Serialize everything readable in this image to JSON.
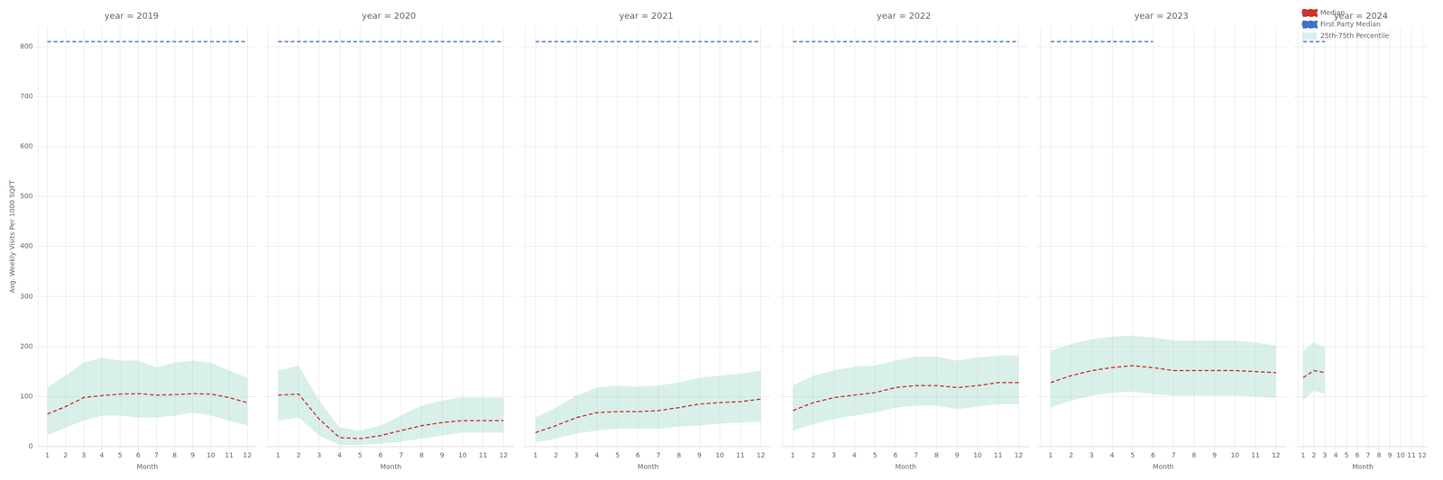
{
  "chart_data": [
    {
      "type": "line",
      "title": "year = 2019",
      "xlabel": "Month",
      "ylabel": "Avg. Weekly Visits Per 1000 SQFT",
      "x": [
        1,
        2,
        3,
        4,
        5,
        6,
        7,
        8,
        9,
        10,
        11,
        12
      ],
      "xlim": [
        0.5,
        12.5
      ],
      "xticks": [
        1,
        2,
        3,
        4,
        5,
        6,
        7,
        8,
        9,
        10,
        11,
        12
      ],
      "ylim": [
        0,
        840
      ],
      "yticks": [
        0,
        100,
        200,
        300,
        400,
        500,
        600,
        700,
        800
      ],
      "grid": true,
      "series": [
        {
          "name": "25th-75th Percentile",
          "type": "area",
          "color": "#90d4c0",
          "low": [
            22,
            38,
            52,
            62,
            62,
            58,
            58,
            62,
            68,
            62,
            52,
            42
          ],
          "high": [
            118,
            142,
            168,
            178,
            172,
            172,
            158,
            168,
            172,
            168,
            152,
            138
          ]
        },
        {
          "name": "Median",
          "type": "line",
          "color": "#cc3333",
          "line_style": "dashed",
          "values": [
            65,
            80,
            98,
            102,
            105,
            106,
            103,
            104,
            106,
            105,
            98,
            88
          ]
        },
        {
          "name": "First Party Median",
          "type": "line",
          "color": "#4472c4",
          "line_style": "dashed",
          "values": [
            810,
            810,
            810,
            810,
            810,
            810,
            810,
            810,
            810,
            810,
            810,
            810
          ]
        }
      ]
    },
    {
      "type": "line",
      "title": "year = 2020",
      "xlabel": "Month",
      "x": [
        1,
        2,
        3,
        4,
        5,
        6,
        7,
        8,
        9,
        10,
        11,
        12
      ],
      "xlim": [
        0.5,
        12.5
      ],
      "xticks": [
        1,
        2,
        3,
        4,
        5,
        6,
        7,
        8,
        9,
        10,
        11,
        12
      ],
      "ylim": [
        0,
        840
      ],
      "yticks": [
        0,
        100,
        200,
        300,
        400,
        500,
        600,
        700,
        800
      ],
      "grid": true,
      "tick_labels": "x",
      "series": [
        {
          "name": "25th-75th Percentile",
          "type": "area",
          "color": "#90d4c0",
          "low": [
            52,
            58,
            22,
            3,
            3,
            6,
            10,
            16,
            22,
            28,
            28,
            28
          ],
          "high": [
            152,
            162,
            92,
            38,
            32,
            42,
            62,
            82,
            92,
            98,
            98,
            98
          ]
        },
        {
          "name": "Median",
          "type": "line",
          "color": "#cc3333",
          "line_style": "dashed",
          "values": [
            103,
            105,
            55,
            18,
            16,
            22,
            32,
            42,
            48,
            52,
            52,
            52
          ]
        },
        {
          "name": "First Party Median",
          "type": "line",
          "color": "#4472c4",
          "line_style": "dashed",
          "values": [
            810,
            810,
            810,
            810,
            810,
            810,
            810,
            810,
            810,
            810,
            810,
            810
          ]
        }
      ]
    },
    {
      "type": "line",
      "title": "year = 2021",
      "xlabel": "Month",
      "x": [
        1,
        2,
        3,
        4,
        5,
        6,
        7,
        8,
        9,
        10,
        11,
        12
      ],
      "xlim": [
        0.5,
        12.5
      ],
      "xticks": [
        1,
        2,
        3,
        4,
        5,
        6,
        7,
        8,
        9,
        10,
        11,
        12
      ],
      "ylim": [
        0,
        840
      ],
      "yticks": [
        0,
        100,
        200,
        300,
        400,
        500,
        600,
        700,
        800
      ],
      "grid": true,
      "tick_labels": "x",
      "series": [
        {
          "name": "25th-75th Percentile",
          "type": "area",
          "color": "#90d4c0",
          "low": [
            8,
            16,
            26,
            32,
            36,
            36,
            36,
            40,
            42,
            46,
            48,
            50
          ],
          "high": [
            58,
            78,
            102,
            118,
            122,
            120,
            122,
            128,
            138,
            142,
            146,
            152
          ]
        },
        {
          "name": "Median",
          "type": "line",
          "color": "#cc3333",
          "line_style": "dashed",
          "values": [
            28,
            42,
            58,
            68,
            70,
            70,
            72,
            78,
            85,
            88,
            90,
            95
          ]
        },
        {
          "name": "First Party Median",
          "type": "line",
          "color": "#4472c4",
          "line_style": "dashed",
          "values": [
            810,
            810,
            810,
            810,
            810,
            810,
            810,
            810,
            810,
            810,
            810,
            810
          ]
        }
      ]
    },
    {
      "type": "line",
      "title": "year = 2022",
      "xlabel": "Month",
      "x": [
        1,
        2,
        3,
        4,
        5,
        6,
        7,
        8,
        9,
        10,
        11,
        12
      ],
      "xlim": [
        0.5,
        12.5
      ],
      "xticks": [
        1,
        2,
        3,
        4,
        5,
        6,
        7,
        8,
        9,
        10,
        11,
        12
      ],
      "ylim": [
        0,
        840
      ],
      "yticks": [
        0,
        100,
        200,
        300,
        400,
        500,
        600,
        700,
        800
      ],
      "grid": true,
      "tick_labels": "x",
      "series": [
        {
          "name": "25th-75th Percentile",
          "type": "area",
          "color": "#90d4c0",
          "low": [
            32,
            45,
            55,
            62,
            68,
            78,
            82,
            82,
            75,
            80,
            85,
            85
          ],
          "high": [
            122,
            142,
            152,
            160,
            162,
            172,
            180,
            180,
            172,
            178,
            182,
            182
          ]
        },
        {
          "name": "Median",
          "type": "line",
          "color": "#cc3333",
          "line_style": "dashed",
          "values": [
            72,
            88,
            98,
            103,
            108,
            118,
            122,
            122,
            118,
            122,
            128,
            128
          ]
        },
        {
          "name": "First Party Median",
          "type": "line",
          "color": "#4472c4",
          "line_style": "dashed",
          "values": [
            810,
            810,
            810,
            810,
            810,
            810,
            810,
            810,
            810,
            810,
            810,
            810
          ]
        }
      ]
    },
    {
      "type": "line",
      "title": "year = 2023",
      "xlabel": "Month",
      "x": [
        1,
        2,
        3,
        4,
        5,
        6,
        7,
        8,
        9,
        10,
        11,
        12
      ],
      "xlim": [
        0.5,
        12.5
      ],
      "xticks": [
        1,
        2,
        3,
        4,
        5,
        6,
        7,
        8,
        9,
        10,
        11,
        12
      ],
      "ylim": [
        0,
        840
      ],
      "yticks": [
        0,
        100,
        200,
        300,
        400,
        500,
        600,
        700,
        800
      ],
      "grid": true,
      "tick_labels": "x",
      "series": [
        {
          "name": "25th-75th Percentile",
          "type": "area",
          "color": "#90d4c0",
          "low": [
            78,
            92,
            102,
            108,
            110,
            105,
            102,
            102,
            102,
            102,
            100,
            98
          ],
          "high": [
            192,
            205,
            215,
            220,
            222,
            218,
            212,
            212,
            212,
            212,
            208,
            202
          ]
        },
        {
          "name": "Median",
          "type": "line",
          "color": "#cc3333",
          "line_style": "dashed",
          "values": [
            128,
            142,
            152,
            158,
            162,
            158,
            152,
            152,
            152,
            152,
            150,
            148
          ]
        },
        {
          "name": "First Party Median",
          "type": "line",
          "color": "#4472c4",
          "line_style": "dashed",
          "values": [
            810,
            810,
            810,
            810,
            810,
            810,
            null,
            null,
            null,
            null,
            null,
            null
          ]
        }
      ]
    },
    {
      "type": "line",
      "title": "year = 2024",
      "xlabel": "Month",
      "x": [
        1,
        2,
        3,
        4,
        5,
        6,
        7,
        8,
        9,
        10,
        11,
        12
      ],
      "xlim": [
        0.5,
        12.5
      ],
      "xticks": [
        1,
        2,
        3,
        4,
        5,
        6,
        7,
        8,
        9,
        10,
        11,
        12
      ],
      "ylim": [
        0,
        840
      ],
      "yticks": [
        0,
        100,
        200,
        300,
        400,
        500,
        600,
        700,
        800
      ],
      "grid": true,
      "tick_labels": "x",
      "legend": "upper left",
      "series": [
        {
          "name": "25th-75th Percentile",
          "type": "area",
          "color": "#90d4c0",
          "low": [
            92,
            112,
            105,
            null,
            null,
            null,
            null,
            null,
            null,
            null,
            null,
            null
          ],
          "high": [
            192,
            208,
            198,
            null,
            null,
            null,
            null,
            null,
            null,
            null,
            null,
            null
          ]
        },
        {
          "name": "Median",
          "type": "line",
          "color": "#cc3333",
          "line_style": "dashed",
          "values": [
            138,
            152,
            148,
            null,
            null,
            null,
            null,
            null,
            null,
            null,
            null,
            null
          ]
        },
        {
          "name": "First Party Median",
          "type": "line",
          "color": "#4472c4",
          "line_style": "dashed",
          "values": [
            810,
            810,
            810,
            null,
            null,
            null,
            null,
            null,
            null,
            null,
            null,
            null
          ]
        }
      ]
    }
  ]
}
